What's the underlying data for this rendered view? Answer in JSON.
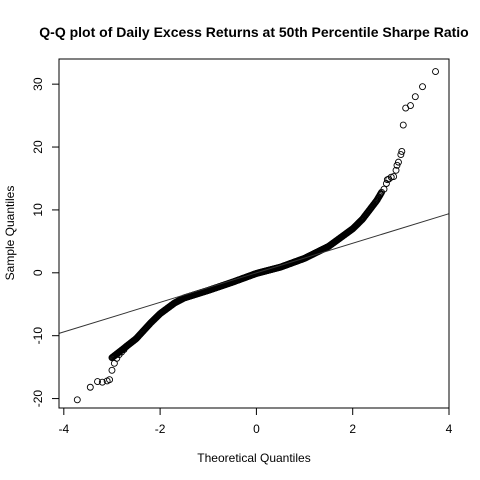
{
  "chart_data": {
    "type": "scatter",
    "title": "Q-Q plot of Daily Excess Returns at 50th Percentile Sharpe Ratio",
    "xlabel": "Theoretical Quantiles",
    "ylabel": "Sample Quantiles",
    "xlim": [
      -4.1,
      4.0
    ],
    "ylim": [
      -21.5,
      34
    ],
    "x_ticks": [
      -4,
      -2,
      0,
      2,
      4
    ],
    "y_ticks": [
      -20,
      -10,
      0,
      10,
      20,
      30
    ],
    "grid": false,
    "legend": "none",
    "marker": "open-circle",
    "reference_line": {
      "intercept": 0,
      "slope": 2.35
    },
    "curve_knots": [
      [
        -3.0,
        -13.5
      ],
      [
        -2.8,
        -12.3
      ],
      [
        -2.5,
        -10.5
      ],
      [
        -2.2,
        -8.0
      ],
      [
        -2.0,
        -6.5
      ],
      [
        -1.7,
        -4.8
      ],
      [
        -1.5,
        -4.0
      ],
      [
        -1.0,
        -2.8
      ],
      [
        -0.5,
        -1.5
      ],
      [
        0,
        -0.1
      ],
      [
        0.5,
        0.9
      ],
      [
        1.0,
        2.3
      ],
      [
        1.5,
        4.2
      ],
      [
        2.0,
        7.0
      ],
      [
        2.2,
        8.5
      ],
      [
        2.5,
        11.5
      ],
      [
        2.6,
        12.8
      ]
    ],
    "tail_points": [
      [
        -3.72,
        -20.2
      ],
      [
        -3.45,
        -18.2
      ],
      [
        -3.3,
        -17.3
      ],
      [
        -3.2,
        -17.4
      ],
      [
        -3.1,
        -17.2
      ],
      [
        -3.05,
        -17.0
      ],
      [
        -3.0,
        -15.5
      ],
      [
        -2.95,
        -14.4
      ],
      [
        -2.9,
        -13.6
      ],
      [
        -2.85,
        -13.0
      ],
      [
        -2.8,
        -12.6
      ],
      [
        -2.75,
        -12.2
      ],
      [
        2.65,
        13.3
      ],
      [
        2.7,
        14.2
      ],
      [
        2.72,
        14.8
      ],
      [
        2.75,
        14.9
      ],
      [
        2.8,
        15.2
      ],
      [
        2.85,
        15.3
      ],
      [
        2.9,
        16.3
      ],
      [
        2.92,
        17.1
      ],
      [
        2.95,
        17.6
      ],
      [
        3.0,
        18.8
      ],
      [
        3.02,
        19.3
      ],
      [
        3.05,
        23.5
      ],
      [
        3.1,
        26.2
      ],
      [
        3.2,
        26.6
      ],
      [
        3.3,
        28.0
      ],
      [
        3.45,
        29.6
      ],
      [
        3.72,
        32.0
      ]
    ]
  }
}
